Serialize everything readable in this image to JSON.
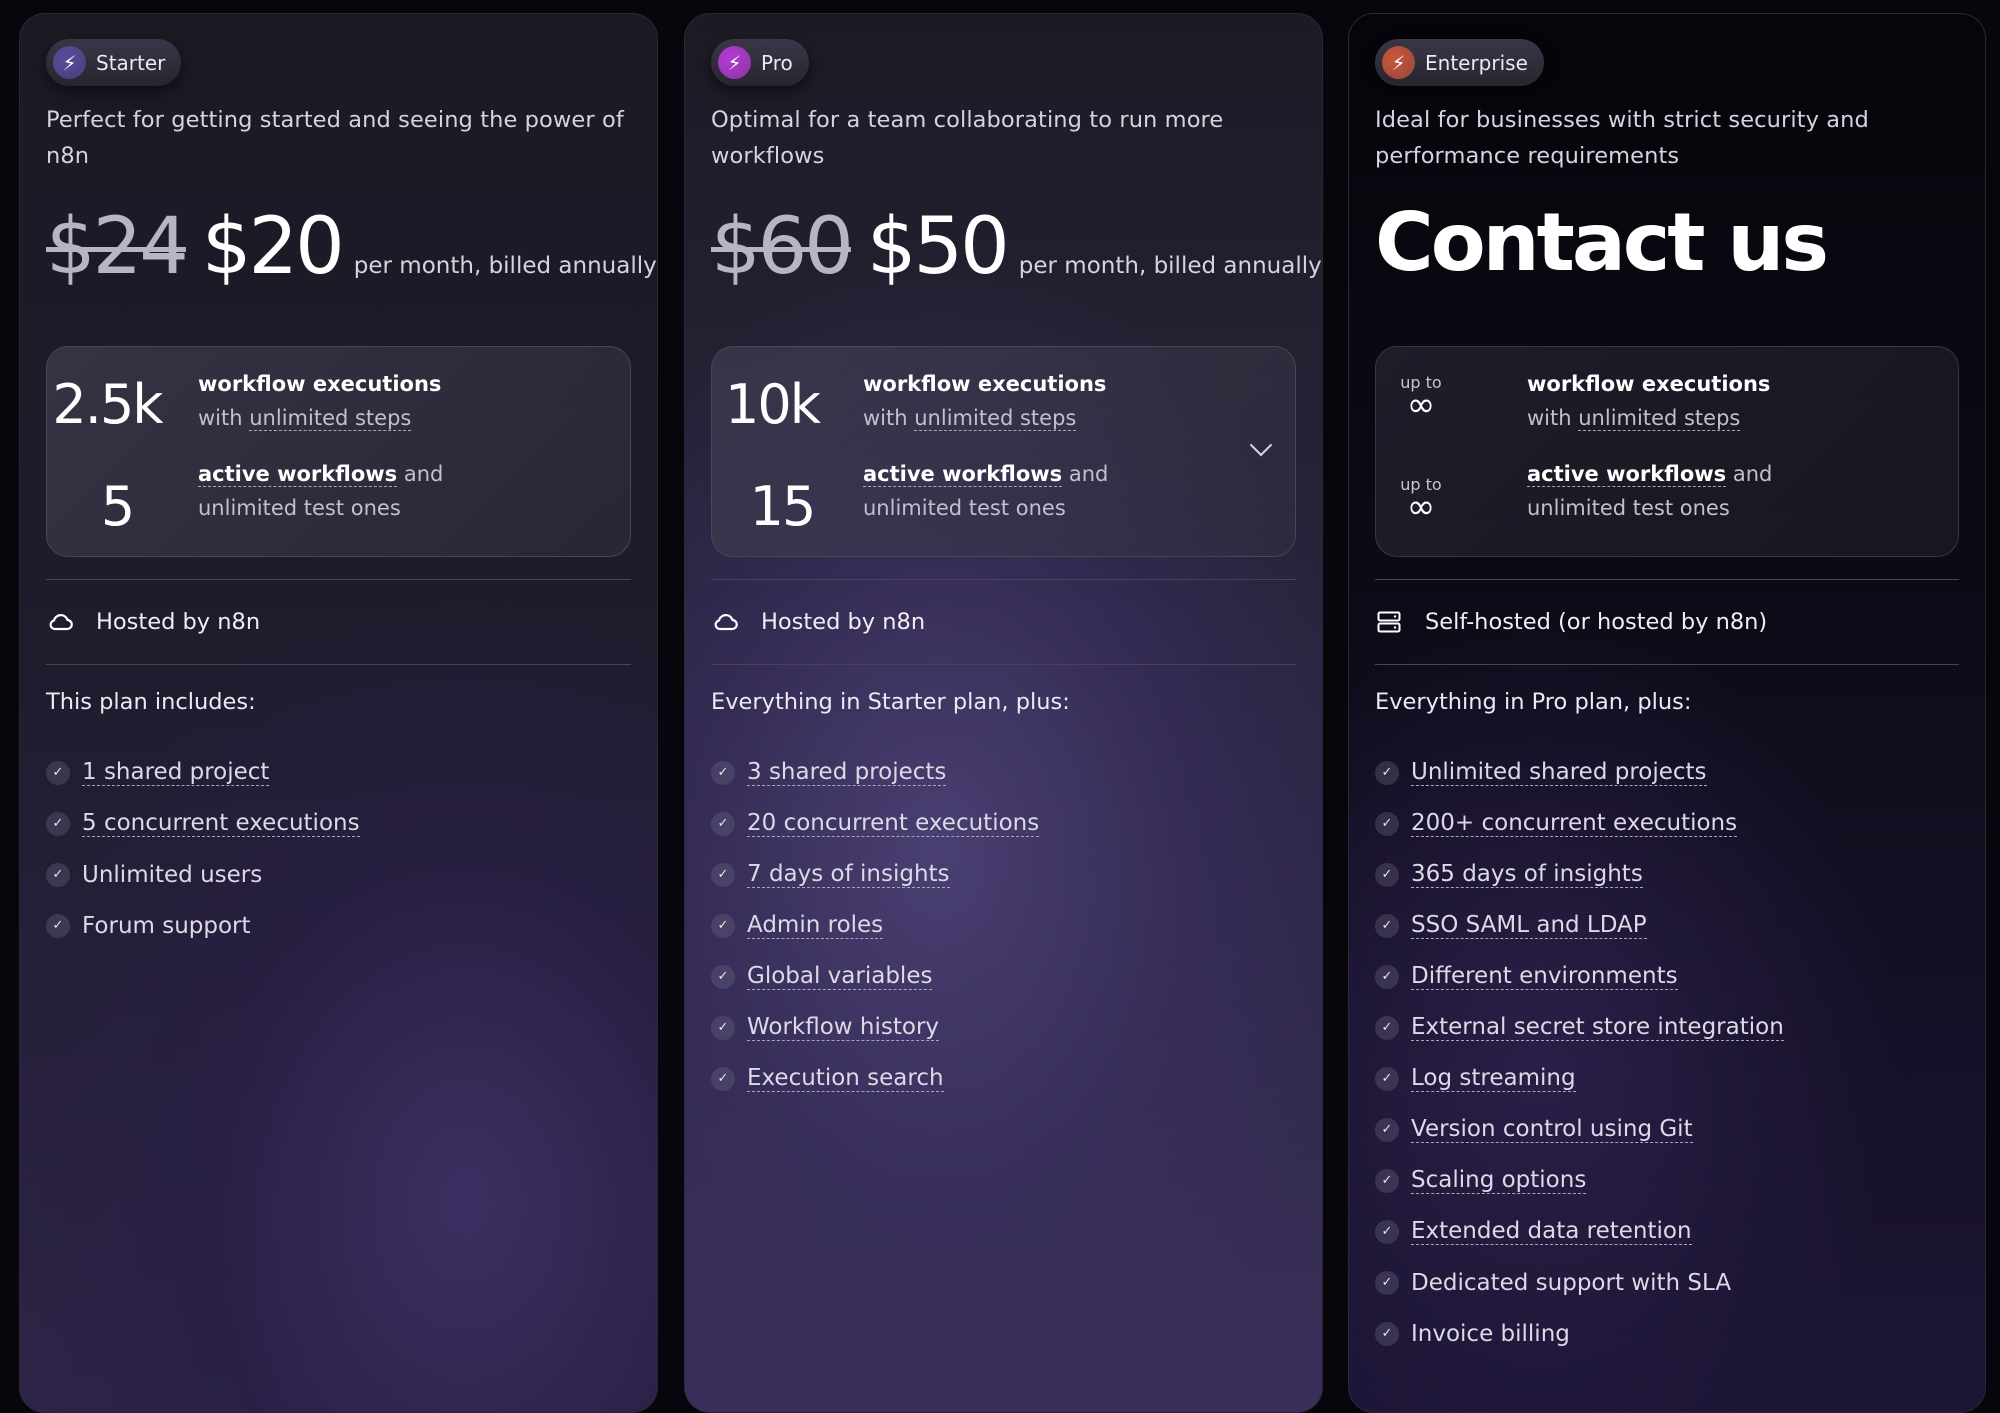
{
  "plans": [
    {
      "name": "Starter",
      "icon": "lightning-icon",
      "icon_color": "#5a4a9a",
      "description": "Perfect for getting started and seeing the power of n8n",
      "old_price": "$24",
      "price": "$20",
      "price_note": "per month, billed annually",
      "executions": "2.5k",
      "workflows": "5",
      "hosting": "Hosted by n8n",
      "hosting_icon": "cloud-icon",
      "includes_title": "This plan includes:",
      "features": [
        {
          "text": "1 shared project",
          "underline": true
        },
        {
          "text": "5 concurrent executions",
          "underline": true
        },
        {
          "text": "Unlimited users",
          "underline": false
        },
        {
          "text": "Forum support",
          "underline": false
        }
      ]
    },
    {
      "name": "Pro",
      "icon": "lightning-icon",
      "icon_color": "#b43bd6",
      "description": "Optimal for a team collaborating to run more workflows",
      "old_price": "$60",
      "price": "$50",
      "price_note": "per month, billed annually",
      "executions": "10k",
      "workflows": "15",
      "hosting": "Hosted by n8n",
      "hosting_icon": "cloud-icon",
      "includes_title": "Everything in Starter plan, plus:",
      "features": [
        {
          "text": "3 shared projects",
          "underline": true
        },
        {
          "text": "20 concurrent executions",
          "underline": true
        },
        {
          "text": "7 days of insights",
          "underline": true
        },
        {
          "text": "Admin roles",
          "underline": true
        },
        {
          "text": "Global variables",
          "underline": true
        },
        {
          "text": "Workflow history",
          "underline": true
        },
        {
          "text": "Execution search",
          "underline": true
        }
      ]
    },
    {
      "name": "Enterprise",
      "icon": "lightning-icon",
      "icon_color": "#c8563a",
      "description": "Ideal for businesses with strict security and performance requirements",
      "price": "Contact us",
      "up_to": "up to",
      "executions": "∞",
      "workflows": "∞",
      "hosting": "Self-hosted (or hosted by n8n)",
      "hosting_icon": "server-icon",
      "includes_title": "Everything in Pro plan, plus:",
      "features": [
        {
          "text": "Unlimited shared projects",
          "underline": true
        },
        {
          "text": "200+ concurrent executions",
          "underline": true
        },
        {
          "text": "365 days of insights",
          "underline": true
        },
        {
          "text": "SSO SAML and LDAP",
          "underline": true
        },
        {
          "text": "Different environments",
          "underline": true
        },
        {
          "text": "External secret store integration",
          "underline": true
        },
        {
          "text": "Log streaming",
          "underline": true
        },
        {
          "text": "Version control using Git",
          "underline": true
        },
        {
          "text": "Scaling options",
          "underline": true
        },
        {
          "text": "Extended data retention",
          "underline": true
        },
        {
          "text": "Dedicated support with SLA",
          "underline": false
        },
        {
          "text": "Invoice billing",
          "underline": false
        }
      ]
    }
  ],
  "stats_labels": {
    "executions_title": "workflow executions",
    "executions_with": "with",
    "executions_steps": "unlimited steps",
    "workflows_title": "active workflows",
    "workflows_and": "and",
    "workflows_test": "unlimited test ones"
  }
}
